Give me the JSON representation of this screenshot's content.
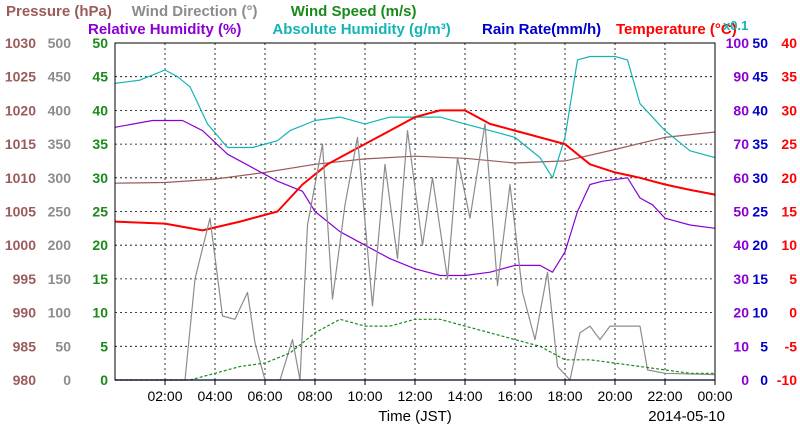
{
  "chart_data": {
    "type": "line",
    "xlabel": "Time (JST)",
    "date": "2014-05-10",
    "x_ticks": [
      "02:00",
      "04:00",
      "06:00",
      "08:00",
      "10:00",
      "12:00",
      "14:00",
      "16:00",
      "18:00",
      "20:00",
      "22:00",
      "00:00"
    ],
    "x_range_hours": [
      0,
      24
    ],
    "grid": true,
    "legend": [
      {
        "label": "Pressure (hPa)",
        "color": "#9b5b5b"
      },
      {
        "label": "Wind Direction (°)",
        "color": "#8c8c8c"
      },
      {
        "label": "Wind Speed (m/s)",
        "color": "#1a8a1a"
      },
      {
        "label": "Relative Humidity (%)",
        "color": "#8a00d4"
      },
      {
        "label": "Absolute Humidity (g/m³)",
        "color": "#14b4b4"
      },
      {
        "label": "Rain Rate(mm/h)",
        "color": "#0000cc"
      },
      {
        "label": "Temperature (°C)",
        "color": "#ff0000"
      }
    ],
    "axis_note": "x0.1",
    "axes": [
      {
        "name": "Pressure",
        "color": "#9b5b5b",
        "range": [
          980,
          1030
        ],
        "ticks": [
          "1030",
          "1025",
          "1020",
          "1015",
          "1010",
          "1005",
          "1000",
          "995",
          "990",
          "985",
          "980"
        ]
      },
      {
        "name": "Wind Direction",
        "color": "#8c8c8c",
        "range": [
          0,
          500
        ],
        "ticks": [
          "500",
          "450",
          "400",
          "350",
          "300",
          "250",
          "200",
          "150",
          "100",
          "50",
          "0"
        ]
      },
      {
        "name": "Wind Speed",
        "color": "#1a8a1a",
        "range": [
          0,
          50
        ],
        "ticks": [
          "50",
          "45",
          "40",
          "35",
          "30",
          "25",
          "20",
          "15",
          "10",
          "5",
          "0"
        ]
      },
      {
        "name": "Relative / Absolute Humidity",
        "color": "#8a00d4",
        "range": [
          0,
          100
        ],
        "ticks": [
          "100",
          "90",
          "80",
          "70",
          "60",
          "50",
          "40",
          "30",
          "20",
          "10",
          "0"
        ]
      },
      {
        "name": "Rain Rate",
        "color": "#0000cc",
        "range": [
          0,
          50
        ],
        "ticks": [
          "50",
          "45",
          "40",
          "35",
          "30",
          "25",
          "20",
          "15",
          "10",
          "5",
          "0"
        ]
      },
      {
        "name": "Temperature",
        "color": "#ff0000",
        "range": [
          -10,
          40
        ],
        "ticks": [
          "40",
          "35",
          "30",
          "25",
          "20",
          "15",
          "10",
          "5",
          "0",
          "-5",
          "-10"
        ]
      }
    ],
    "series": [
      {
        "name": "Pressure (hPa)",
        "color": "#9b5b5b",
        "axis": 0,
        "points": [
          [
            0,
            1009.2
          ],
          [
            2,
            1009.3
          ],
          [
            4,
            1009.8
          ],
          [
            6,
            1010.8
          ],
          [
            8,
            1012.0
          ],
          [
            10,
            1012.8
          ],
          [
            12,
            1013.2
          ],
          [
            14,
            1012.9
          ],
          [
            16,
            1012.2
          ],
          [
            18,
            1012.5
          ],
          [
            20,
            1014.2
          ],
          [
            22,
            1016.0
          ],
          [
            24,
            1016.8
          ]
        ]
      },
      {
        "name": "Relative Humidity (%)",
        "color": "#8a00d4",
        "axis": 3,
        "points": [
          [
            0,
            75
          ],
          [
            1.5,
            77
          ],
          [
            2.7,
            77
          ],
          [
            3.5,
            74
          ],
          [
            4.5,
            67
          ],
          [
            5.5,
            63
          ],
          [
            6.5,
            59
          ],
          [
            7.5,
            56
          ],
          [
            8,
            50
          ],
          [
            9,
            44
          ],
          [
            10,
            40
          ],
          [
            11,
            36
          ],
          [
            12,
            33
          ],
          [
            13,
            31
          ],
          [
            14,
            31
          ],
          [
            15,
            32
          ],
          [
            16,
            34
          ],
          [
            17,
            34
          ],
          [
            17.5,
            32
          ],
          [
            18,
            38
          ],
          [
            18.5,
            50
          ],
          [
            19,
            58
          ],
          [
            19.5,
            59
          ],
          [
            20.5,
            60
          ],
          [
            21,
            54
          ],
          [
            21.5,
            52
          ],
          [
            22,
            48
          ],
          [
            23,
            46
          ],
          [
            24,
            45
          ]
        ]
      },
      {
        "name": "Absolute Humidity (g/m³)",
        "color": "#14b4b4",
        "axis": 3,
        "points": [
          [
            0,
            88
          ],
          [
            1,
            89
          ],
          [
            2,
            92
          ],
          [
            2.5,
            90
          ],
          [
            3,
            87
          ],
          [
            3.7,
            76
          ],
          [
            4.5,
            69
          ],
          [
            5.5,
            69
          ],
          [
            6.5,
            71
          ],
          [
            7,
            74
          ],
          [
            8,
            77
          ],
          [
            9,
            78
          ],
          [
            10,
            76
          ],
          [
            11,
            78
          ],
          [
            12,
            78
          ],
          [
            13,
            78
          ],
          [
            14,
            76
          ],
          [
            15,
            74
          ],
          [
            16,
            72
          ],
          [
            17,
            66
          ],
          [
            17.5,
            60
          ],
          [
            18,
            72
          ],
          [
            18.5,
            95
          ],
          [
            19,
            96
          ],
          [
            20,
            96
          ],
          [
            20.5,
            95
          ],
          [
            21,
            82
          ],
          [
            22,
            74
          ],
          [
            23,
            68
          ],
          [
            24,
            66
          ]
        ]
      },
      {
        "name": "Temperature (°C)",
        "color": "#ff0000",
        "axis": 5,
        "points": [
          [
            0,
            13.5
          ],
          [
            2,
            13.2
          ],
          [
            3.5,
            12.2
          ],
          [
            5,
            13.5
          ],
          [
            6.5,
            15.0
          ],
          [
            7.5,
            19
          ],
          [
            8.5,
            22
          ],
          [
            9.5,
            24
          ],
          [
            11,
            27
          ],
          [
            12,
            29
          ],
          [
            13,
            30
          ],
          [
            14,
            30
          ],
          [
            15,
            28
          ],
          [
            16,
            27
          ],
          [
            17,
            26
          ],
          [
            18,
            25
          ],
          [
            19,
            22
          ],
          [
            20,
            20.8
          ],
          [
            21,
            20.0
          ],
          [
            22,
            19.0
          ],
          [
            23,
            18.2
          ],
          [
            24,
            17.5
          ]
        ]
      },
      {
        "name": "Wind Direction (°)",
        "color": "#8c8c8c",
        "axis": 1,
        "points": [
          [
            0,
            0
          ],
          [
            2.8,
            0
          ],
          [
            3.2,
            150
          ],
          [
            3.8,
            240
          ],
          [
            4.3,
            95
          ],
          [
            4.8,
            90
          ],
          [
            5.3,
            130
          ],
          [
            5.6,
            55
          ],
          [
            6,
            0
          ],
          [
            6.6,
            0
          ],
          [
            7.1,
            60
          ],
          [
            7.4,
            0
          ],
          [
            7.7,
            230
          ],
          [
            8.3,
            350
          ],
          [
            8.7,
            120
          ],
          [
            9.2,
            260
          ],
          [
            9.7,
            360
          ],
          [
            10.3,
            110
          ],
          [
            10.8,
            320
          ],
          [
            11.3,
            180
          ],
          [
            11.7,
            370
          ],
          [
            12.3,
            200
          ],
          [
            12.7,
            300
          ],
          [
            13.3,
            150
          ],
          [
            13.7,
            330
          ],
          [
            14.2,
            240
          ],
          [
            14.8,
            380
          ],
          [
            15.3,
            140
          ],
          [
            15.8,
            290
          ],
          [
            16.3,
            130
          ],
          [
            16.8,
            60
          ],
          [
            17.3,
            160
          ],
          [
            17.7,
            20
          ],
          [
            18.2,
            0
          ],
          [
            18.6,
            70
          ],
          [
            19,
            80
          ],
          [
            19.4,
            60
          ],
          [
            19.8,
            80
          ],
          [
            20.5,
            80
          ],
          [
            21,
            80
          ],
          [
            21.3,
            15
          ],
          [
            22,
            10
          ],
          [
            24,
            8
          ]
        ]
      },
      {
        "name": "Wind Speed (m/s)",
        "color": "#1a8a1a",
        "axis": 2,
        "points": [
          [
            0,
            0
          ],
          [
            3,
            0
          ],
          [
            4,
            1
          ],
          [
            5,
            2
          ],
          [
            6,
            2.5
          ],
          [
            7,
            4
          ],
          [
            8,
            7
          ],
          [
            9,
            9
          ],
          [
            10,
            8
          ],
          [
            11,
            8
          ],
          [
            12,
            9
          ],
          [
            13,
            9
          ],
          [
            14,
            8
          ],
          [
            15,
            7
          ],
          [
            16,
            6
          ],
          [
            17,
            5
          ],
          [
            18,
            3
          ],
          [
            19,
            3
          ],
          [
            20,
            2.5
          ],
          [
            21,
            2
          ],
          [
            22,
            1.5
          ],
          [
            23,
            1
          ],
          [
            24,
            1
          ]
        ]
      },
      {
        "name": "Rain Rate(mm/h)",
        "color": "#0000cc",
        "axis": 4,
        "points": [
          [
            0,
            0
          ],
          [
            24,
            0
          ]
        ]
      }
    ]
  }
}
